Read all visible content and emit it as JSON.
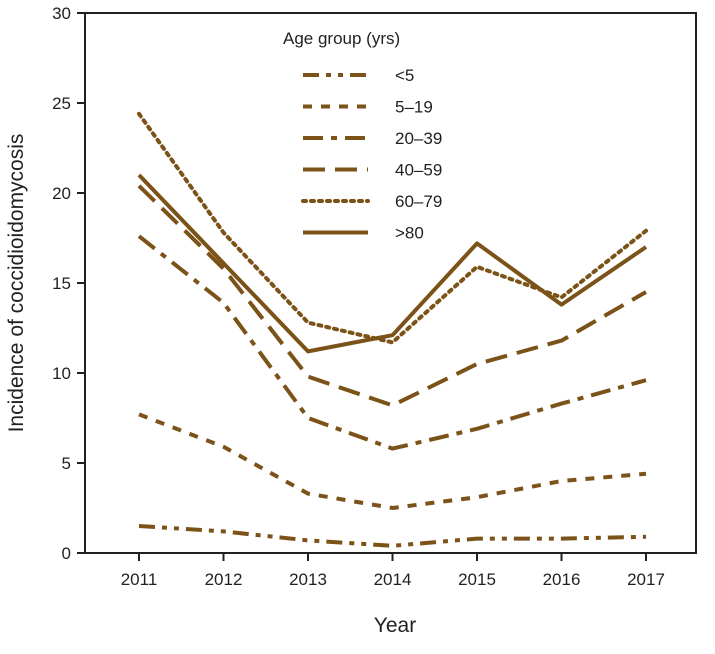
{
  "chart_data": {
    "type": "line",
    "title": "",
    "xlabel": "Year",
    "ylabel": "Incidence of coccidioidomycosis",
    "categories": [
      "2011",
      "2012",
      "2013",
      "2014",
      "2015",
      "2016",
      "2017"
    ],
    "ylim": [
      0,
      30
    ],
    "yticks": [
      "0",
      "5",
      "10",
      "15",
      "20",
      "25",
      "30"
    ],
    "grid": false,
    "legend": {
      "title": "Age group (yrs)",
      "position": "top-center"
    },
    "line_color": "#7b5217",
    "series": [
      {
        "name": "<5",
        "style": "dash-dot-dot",
        "values": [
          1.5,
          1.2,
          0.7,
          0.4,
          0.8,
          0.8,
          0.9
        ]
      },
      {
        "name": "5–19",
        "style": "short-dash",
        "values": [
          7.7,
          5.9,
          3.3,
          2.5,
          3.1,
          4.0,
          4.4
        ]
      },
      {
        "name": "20–39",
        "style": "dash-dot",
        "values": [
          17.6,
          13.9,
          7.5,
          5.8,
          6.9,
          8.3,
          9.6
        ]
      },
      {
        "name": "40–59",
        "style": "long-dash",
        "values": [
          20.4,
          15.8,
          9.8,
          8.2,
          10.5,
          11.8,
          14.5
        ]
      },
      {
        "name": "60–79",
        "style": "dotted",
        "values": [
          24.4,
          17.8,
          12.8,
          11.7,
          15.9,
          14.2,
          17.9
        ]
      },
      {
        "name": ">80",
        "style": "solid",
        "values": [
          21.0,
          16.1,
          11.2,
          12.1,
          17.2,
          13.8,
          17.0
        ]
      }
    ]
  }
}
